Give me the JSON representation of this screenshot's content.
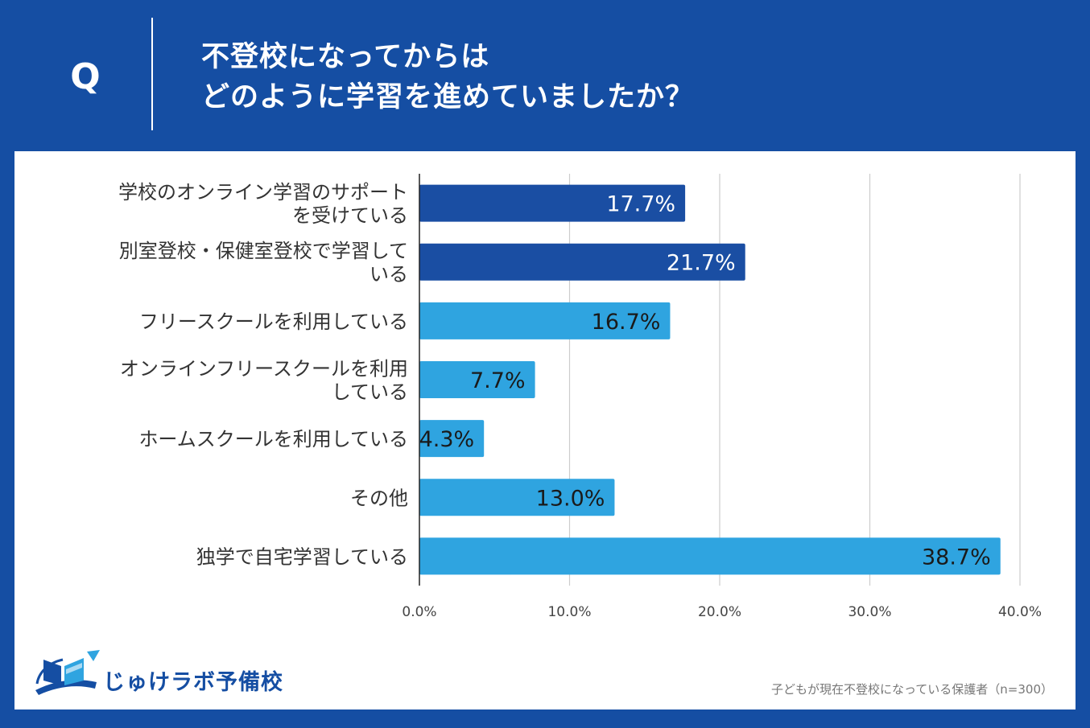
{
  "question": {
    "letter": "Q",
    "title_line1": "不登校になってからは",
    "title_line2": "どのように学習を進めていましたか？"
  },
  "colors": {
    "background": "#154ea3",
    "dark_bar": "#1a4ea3",
    "light_bar": "#2fa4e0",
    "grid": "#cccccc"
  },
  "chart_data": {
    "type": "bar",
    "orientation": "horizontal",
    "categories": [
      [
        "学校のオンライン学習のサポート",
        "を受けている"
      ],
      [
        "別室登校・保健室登校で学習して",
        "いる"
      ],
      [
        "フリースクールを利用している"
      ],
      [
        "オンラインフリースクールを利用",
        "している"
      ],
      [
        "ホームスクールを利用している"
      ],
      [
        "その他"
      ],
      [
        "独学で自宅学習している"
      ]
    ],
    "values": [
      17.7,
      21.7,
      16.7,
      7.7,
      4.3,
      13.0,
      38.7
    ],
    "value_labels": [
      "17.7%",
      "21.7%",
      "16.7%",
      "7.7%",
      "4.3%",
      "13.0%",
      "38.7%"
    ],
    "bar_color_keys": [
      "dark",
      "dark",
      "light",
      "light",
      "light",
      "light",
      "light"
    ],
    "xlim": [
      0,
      40
    ],
    "x_ticks": [
      0,
      10,
      20,
      30,
      40
    ],
    "x_tick_labels": [
      "0.0%",
      "10.0%",
      "20.0%",
      "30.0%",
      "40.0%"
    ],
    "grid": true,
    "title": "",
    "xlabel": "",
    "ylabel": ""
  },
  "brand": {
    "name": "じゅけラボ予備校",
    "icon": "book-logo-icon"
  },
  "footnote": "子どもが現在不登校になっている保護者（n=300）"
}
